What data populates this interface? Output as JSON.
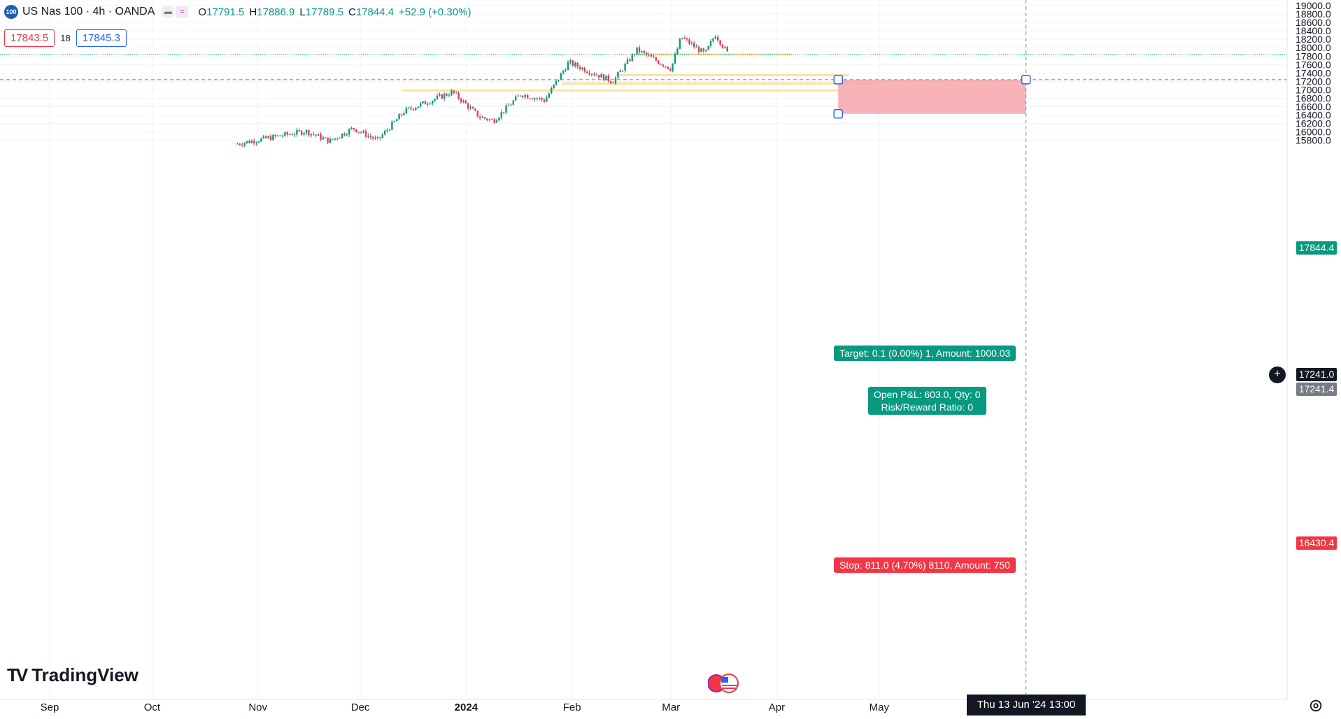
{
  "symbol": {
    "badge": "100",
    "title": "US Nas 100 · 4h · OANDA",
    "open_label": "O",
    "open": "17791.5",
    "high_label": "H",
    "high": "17886.9",
    "low_label": "L",
    "low": "17789.5",
    "close_label": "C",
    "close": "17844.4",
    "change": "+52.9 (+0.30%)"
  },
  "quote": {
    "sell": "17843.5",
    "spread": "18",
    "buy": "17845.3"
  },
  "price_axis": {
    "ticks": [
      "19000.0",
      "18800.0",
      "18600.0",
      "18400.0",
      "18200.0",
      "18000.0",
      "17800.0",
      "17600.0",
      "17400.0",
      "17200.0",
      "17000.0",
      "16800.0",
      "16600.0",
      "16400.0",
      "16200.0",
      "16000.0",
      "15800.0"
    ],
    "last_price": "17844.4",
    "crosshair_price": "17241.0",
    "entry_price": "17241.4",
    "stop_price": "16430.4"
  },
  "time_axis": {
    "labels": [
      "Sep",
      "Oct",
      "Nov",
      "Dec",
      "2024",
      "Feb",
      "Mar",
      "Apr",
      "May"
    ],
    "crosshair_time": "Thu 13 Jun '24   13:00"
  },
  "position": {
    "target_label": "Target: 0.1 (0.00%) 1, Amount: 1000.03",
    "pnl_label": "Open P&L: 603.0, Qty: 0",
    "rr_label": "Risk/Reward Ratio: 0",
    "stop_label": "Stop: 811.0 (4.70%) 8110, Amount: 750"
  },
  "zones": [
    {
      "price_top": 17863,
      "price_bottom": 17815,
      "start": "2024-02-20",
      "end": "2024-04-05"
    },
    {
      "price_top": 17370,
      "price_bottom": 17325,
      "start": "2024-02-14",
      "end": "2024-04-22"
    },
    {
      "price_top": 17175,
      "price_bottom": 17125,
      "start": "2024-01-29",
      "end": "2024-05-01"
    },
    {
      "price_top": 17005,
      "price_bottom": 16965,
      "start": "2023-12-13",
      "end": "2024-06-10"
    }
  ],
  "brand": "TradingView",
  "colors": {
    "up": "#089981",
    "down": "#f23645",
    "zone": "#fbd98a",
    "stop_area": "#f7a6ad",
    "grid": "#f0f3fa",
    "accent": "#2962ff"
  },
  "icons": [
    "chart-type-icon",
    "compare-icon",
    "plus-icon",
    "flag-icon",
    "settings-icon",
    "tradingview-logo"
  ]
}
